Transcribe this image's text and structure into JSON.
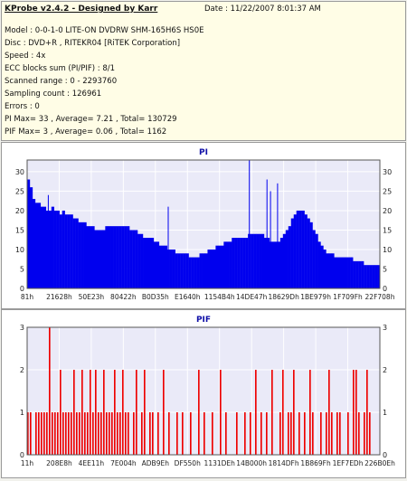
{
  "header": {
    "title": "KProbe v2.4.2 - Designed by Karr",
    "date_label": "Date : 11/22/2007 8:01:37 AM"
  },
  "info_lines": [
    "Model : 0-0-1-0 LITE-ON DVDRW SHM-165H6S HS0E",
    "Disc : DVD+R , RITEKR04 [RiTEK Corporation]",
    "Speed : 4x",
    "ECC blocks sum (PI/PIF) : 8/1",
    "Scanned range : 0 - 2293760",
    "Sampling count : 126961",
    "Errors : 0",
    "PI Max= 33 , Average= 7.21 , Total= 130729",
    "PIF Max= 3 , Average= 0.06 , Total= 1162"
  ],
  "colors": {
    "pi_bar": "#0000ee",
    "pif_bar": "#ee0000",
    "plot_bg": "#eaeaf8",
    "grid": "#ffffff",
    "title_text": "#1010a8"
  },
  "chart_data": [
    {
      "type": "bar",
      "title": "PI",
      "ylim": [
        0,
        33
      ],
      "yticks": [
        0,
        5,
        10,
        15,
        20,
        25,
        30
      ],
      "xticks": [
        "81h",
        "21628h",
        "50E23h",
        "80422h",
        "B0D35h",
        "E1640h",
        "1154B4h",
        "14DE47h",
        "18629Dh",
        "1BE979h",
        "1F709Fh",
        "22F708h"
      ],
      "grid": true,
      "series": [
        {
          "values": [
            28,
            26,
            23,
            22,
            22,
            21,
            21,
            20,
            20,
            21,
            20,
            20,
            19,
            20,
            19,
            19,
            19,
            18,
            18,
            17,
            17,
            17,
            16,
            16,
            16,
            15,
            15,
            15,
            15,
            16,
            16,
            16,
            16,
            16,
            16,
            16,
            16,
            16,
            15,
            15,
            15,
            14,
            14,
            13,
            13,
            13,
            13,
            12,
            12,
            11,
            11,
            11,
            10,
            10,
            10,
            9,
            9,
            9,
            9,
            9,
            8,
            8,
            8,
            8,
            9,
            9,
            9,
            10,
            10,
            10,
            11,
            11,
            11,
            12,
            12,
            12,
            13,
            13,
            13,
            13,
            13,
            13,
            14,
            14,
            14,
            14,
            14,
            14,
            13,
            13,
            12,
            12,
            12,
            12,
            13,
            14,
            15,
            16,
            18,
            19,
            20,
            20,
            20,
            19,
            18,
            17,
            15,
            14,
            12,
            11,
            10,
            9,
            9,
            9,
            8,
            8,
            8,
            8,
            8,
            8,
            8,
            7,
            7,
            7,
            7,
            6,
            6,
            6,
            6,
            6,
            6
          ]
        }
      ],
      "peaks": [
        [
          0.06,
          24
        ],
        [
          0.4,
          21
        ],
        [
          0.63,
          33
        ],
        [
          0.69,
          25
        ],
        [
          0.68,
          28
        ],
        [
          0.71,
          27
        ]
      ]
    },
    {
      "type": "bar",
      "title": "PIF",
      "ylim": [
        0,
        3
      ],
      "yticks": [
        0,
        1,
        2,
        3
      ],
      "xticks": [
        "11h",
        "208E8h",
        "4EE11h",
        "7E004h",
        "ADB9Eh",
        "DF550h",
        "1131DEh",
        "14B000h",
        "1814DFh",
        "1B869Fh",
        "1EF7EDh",
        "226B0Eh"
      ],
      "grid": true,
      "series": [
        {
          "values": [
            1,
            1,
            0,
            1,
            1,
            1,
            1,
            1,
            3,
            1,
            1,
            1,
            2,
            1,
            1,
            1,
            1,
            2,
            1,
            1,
            2,
            1,
            1,
            2,
            1,
            2,
            1,
            1,
            2,
            1,
            1,
            1,
            2,
            1,
            1,
            2,
            1,
            1,
            0,
            1,
            2,
            0,
            1,
            2,
            0,
            1,
            1,
            0,
            1,
            0,
            2,
            0,
            1,
            0,
            0,
            1,
            0,
            1,
            0,
            0,
            1,
            0,
            0,
            2,
            0,
            1,
            0,
            0,
            1,
            0,
            0,
            2,
            0,
            1,
            0,
            0,
            0,
            1,
            0,
            0,
            1,
            0,
            1,
            0,
            2,
            0,
            1,
            0,
            1,
            0,
            2,
            0,
            0,
            1,
            2,
            0,
            1,
            1,
            2,
            0,
            1,
            0,
            1,
            0,
            2,
            1,
            0,
            0,
            1,
            0,
            1,
            2,
            1,
            0,
            1,
            1,
            0,
            0,
            1,
            0,
            2,
            2,
            1,
            0,
            1,
            2,
            1,
            0,
            0,
            0
          ]
        }
      ]
    }
  ]
}
